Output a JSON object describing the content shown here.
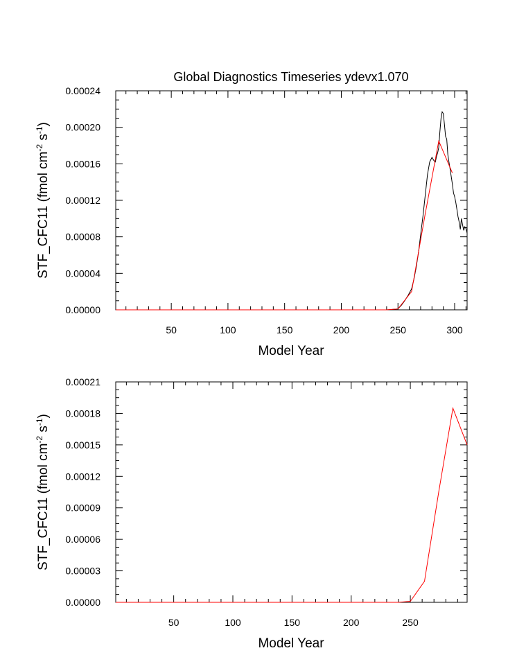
{
  "colors": {
    "model_line": "#000000",
    "obs_line": "#ff0000",
    "axis": "#000000",
    "background": "#ffffff"
  },
  "chart_data": [
    {
      "type": "line",
      "title": "Global Diagnostics Timeseries ydevx1.070",
      "xlabel": "Model Year",
      "ylabel_base": "STF_CFC11 (fmol cm",
      "ylabel_exp1": "-2",
      "ylabel_mid": " s",
      "ylabel_exp2": "-1",
      "ylabel_end": ")",
      "xlim": [
        1,
        311
      ],
      "ylim": [
        0,
        0.00024
      ],
      "xticks": [
        50,
        100,
        150,
        200,
        250,
        300
      ],
      "xtick_labels": [
        "50",
        "100",
        "150",
        "200",
        "250",
        "300"
      ],
      "yticks": [
        0,
        4e-05,
        8e-05,
        0.00012,
        0.00016,
        0.0002,
        0.00024
      ],
      "ytick_labels": [
        "0.00000",
        "0.00004",
        "0.00008",
        "0.00012",
        "0.00016",
        "0.00020",
        "0.00024"
      ],
      "series": [
        {
          "color": "#000000",
          "x": [
            1,
            100,
            200,
            240,
            250,
            253,
            256,
            259,
            262,
            264,
            266,
            268,
            270,
            272,
            274,
            276,
            278,
            280,
            281,
            282,
            283,
            284,
            285,
            286,
            287,
            288,
            289,
            290,
            291,
            292,
            293,
            294,
            295,
            296,
            297,
            298,
            299,
            300,
            301,
            302,
            303,
            304,
            305,
            306,
            307,
            308,
            309,
            310,
            311
          ],
          "y": [
            0,
            0,
            0,
            0,
            1e-06,
            5e-06,
            1e-05,
            1.6e-05,
            2.3e-05,
            3.3e-05,
            4.6e-05,
            6.2e-05,
            8.2e-05,
            0.000102,
            0.000125,
            0.000148,
            0.000162,
            0.000167,
            0.000165,
            0.000163,
            0.000162,
            0.000168,
            0.000172,
            0.000178,
            0.000195,
            0.00021,
            0.000217,
            0.000215,
            0.000203,
            0.00019,
            0.000187,
            0.00017,
            0.000162,
            0.000154,
            0.000146,
            0.000138,
            0.000128,
            0.000124,
            0.000118,
            0.00011,
            0.000102,
            9.6e-05,
            8.8e-05,
            0.0001,
            9.3e-05,
            8.7e-05,
            9.1e-05,
            8.9e-05,
            8.4e-05
          ]
        },
        {
          "color": "#ff0000",
          "x": [
            1,
            100,
            200,
            240,
            250,
            262,
            274,
            286,
            298
          ],
          "y": [
            0,
            0,
            0,
            0,
            1e-06,
            2e-05,
            0.000105,
            0.000185,
            0.00015
          ]
        }
      ]
    },
    {
      "type": "line",
      "title": "",
      "xlabel": "Model Year",
      "ylabel_base": "STF_CFC11 (fmol cm",
      "ylabel_exp1": "-2",
      "ylabel_mid": " s",
      "ylabel_exp2": "-1",
      "ylabel_end": ")",
      "xlim": [
        1,
        298
      ],
      "ylim": [
        0,
        0.00021
      ],
      "xticks": [
        50,
        100,
        150,
        200,
        250
      ],
      "xtick_labels": [
        "50",
        "100",
        "150",
        "200",
        "250"
      ],
      "yticks": [
        0,
        3e-05,
        6e-05,
        9e-05,
        0.00012,
        0.00015,
        0.00018,
        0.00021
      ],
      "ytick_labels": [
        "0.00000",
        "0.00003",
        "0.00006",
        "0.00009",
        "0.00012",
        "0.00015",
        "0.00018",
        "0.00021"
      ],
      "series": [
        {
          "color": "#ff0000",
          "x": [
            1,
            100,
            200,
            240,
            250,
            262,
            274,
            286,
            298
          ],
          "y": [
            0,
            0,
            0,
            0,
            1e-06,
            2e-05,
            0.000105,
            0.000185,
            0.00015
          ]
        }
      ]
    }
  ]
}
